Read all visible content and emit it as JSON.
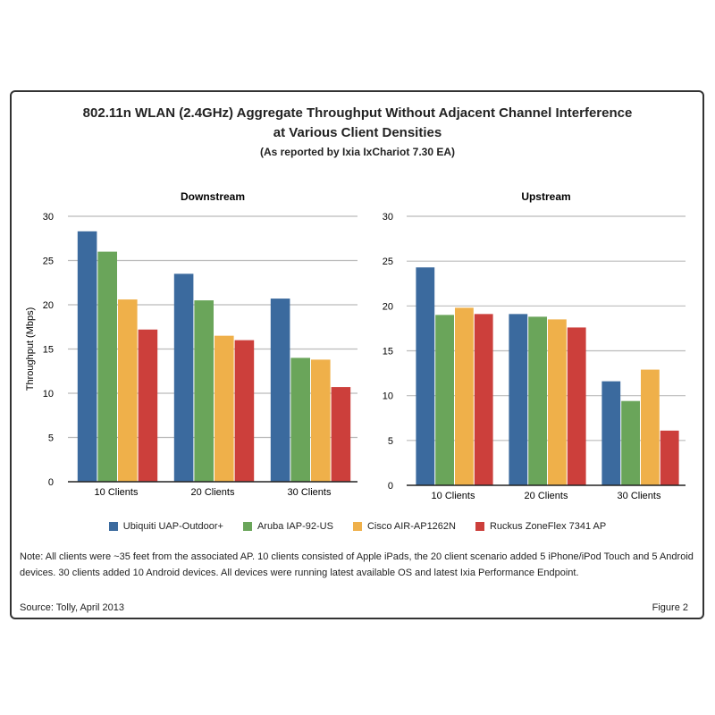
{
  "title": "802.11n WLAN (2.4GHz) Aggregate Throughput Without Adjacent Channel Interference",
  "title2": "at Various Client Densities",
  "subtitle": "(As reported by Ixia IxChariot 7.30 EA)",
  "note": "Note: All clients were ~35 feet from the associated AP. 10 clients consisted of Apple iPads, the 20 client scenario added 5 iPhone/iPod Touch and 5 Android devices. 30 clients added 10 Android devices. All devices were running latest available OS and latest Ixia Performance Endpoint.",
  "source": "Source: Tolly, April 2013",
  "figure": "Figure 2",
  "colors": [
    "#3b6a9e",
    "#6aa55a",
    "#efb04a",
    "#cc3f3b"
  ],
  "chart_data": [
    {
      "type": "bar",
      "title": "Downstream",
      "ylabel": "Throughput (Mbps)",
      "ylim": [
        0,
        30
      ],
      "yticks": [
        0,
        5,
        10,
        15,
        20,
        25,
        30
      ],
      "grid": true,
      "legend": "bottom",
      "categories": [
        "10 Clients",
        "20 Clients",
        "30 Clients"
      ],
      "series": [
        {
          "name": "Ubiquiti UAP-Outdoor+",
          "values": [
            28.3,
            23.5,
            20.7
          ]
        },
        {
          "name": "Aruba IAP-92-US",
          "values": [
            26.0,
            20.5,
            14.0
          ]
        },
        {
          "name": "Cisco AIR-AP1262N",
          "values": [
            20.6,
            16.5,
            13.8
          ]
        },
        {
          "name": "Ruckus ZoneFlex 7341 AP",
          "values": [
            17.2,
            16.0,
            10.7
          ]
        }
      ]
    },
    {
      "type": "bar",
      "title": "Upstream",
      "ylabel": "",
      "ylim": [
        0,
        30
      ],
      "yticks": [
        0,
        5,
        10,
        15,
        20,
        25,
        30
      ],
      "grid": true,
      "legend": "bottom",
      "categories": [
        "10 Clients",
        "20 Clients",
        "30 Clients"
      ],
      "series": [
        {
          "name": "Ubiquiti UAP-Outdoor+",
          "values": [
            24.3,
            19.1,
            11.6
          ]
        },
        {
          "name": "Aruba IAP-92-US",
          "values": [
            19.0,
            18.8,
            9.4
          ]
        },
        {
          "name": "Cisco AIR-AP1262N",
          "values": [
            19.8,
            18.5,
            12.9
          ]
        },
        {
          "name": "Ruckus ZoneFlex 7341 AP",
          "values": [
            19.1,
            17.6,
            6.1
          ]
        }
      ]
    }
  ]
}
